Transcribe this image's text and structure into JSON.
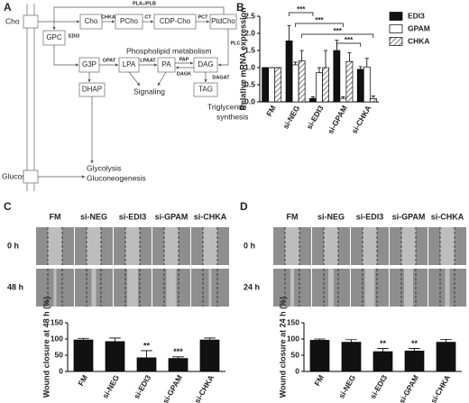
{
  "figure": {
    "panel_labels": [
      "A",
      "B",
      "C",
      "D"
    ]
  },
  "diagram": {
    "nodes": [
      "Cho",
      "Cho",
      "PCho",
      "CDP-Cho",
      "PtdCho",
      "GPC",
      "G3P",
      "LPA",
      "PA",
      "DAG",
      "DHAP",
      "TAG",
      "Glucose"
    ],
    "enzymes": [
      "PLA₂/PLB",
      "CHKA",
      "CT",
      "PCT",
      "EDI3",
      "PLC",
      "GPAT",
      "LPAAT",
      "PAP",
      "DAGK",
      "DAGAT"
    ],
    "labels": [
      "Phospholipid metabolism",
      "Signaling",
      "Triglyceride",
      "synthesis",
      "Glycolysis",
      "Gluconeogenesis"
    ]
  },
  "chart_data": [
    {
      "type": "bar",
      "y_label": "Relative mRNA expression",
      "categories": [
        "FM",
        "si-NEG",
        "si-EDI3",
        "si-GPAM",
        "si-CHKA"
      ],
      "series": [
        {
          "name": "EDI3",
          "color": "#111111",
          "values": [
            1.0,
            1.78,
            0.1,
            1.5,
            0.95
          ],
          "errors": [
            0,
            0.45,
            0.05,
            0.3,
            0.08
          ]
        },
        {
          "name": "GPAM",
          "color": "#ffffff",
          "values": [
            1.0,
            1.08,
            0.85,
            0.1,
            1.02
          ],
          "errors": [
            0,
            0.08,
            0.15,
            0.05,
            0.25
          ]
        },
        {
          "name": "CHKA",
          "color": "#ffffff",
          "pattern": "hatch",
          "values": [
            1.0,
            1.2,
            1.0,
            1.18,
            0.1
          ],
          "errors": [
            0,
            0.3,
            0.5,
            0.25,
            0.07
          ]
        }
      ],
      "ylim": [
        0,
        2.5
      ],
      "yticks": [
        {
          "value": 0,
          "label": "0.0"
        },
        0.5,
        {
          "value": 1,
          "label": "1.0"
        },
        1.5,
        {
          "value": 2,
          "label": "2.0"
        },
        2.5
      ],
      "annotations": [
        "***",
        "***",
        "***",
        "***"
      ],
      "legend": "upper right"
    },
    {
      "type": "bar",
      "y_label": "Wound closure at 48 h (%)",
      "categories": [
        "FM",
        "si-NEG",
        "si-EDI3",
        "si-GPAM",
        "si-CHKA"
      ],
      "values": [
        97,
        92,
        42,
        40,
        97
      ],
      "errors": [
        5,
        11,
        22,
        5,
        6
      ],
      "color": "#111111",
      "ylim": [
        0,
        150
      ],
      "yticks": [
        0,
        50,
        100,
        150
      ],
      "annotations": [
        "**",
        "***"
      ]
    },
    {
      "type": "bar",
      "y_label": "Wound closure at 24 h (%)",
      "categories": [
        "FM",
        "si-NEG",
        "si-EDI3",
        "si-GPAM",
        "si-CHKA"
      ],
      "values": [
        96,
        90,
        61,
        63,
        90
      ],
      "errors": [
        4,
        8,
        10,
        8,
        9
      ],
      "color": "#111111",
      "ylim": [
        0,
        150
      ],
      "yticks": [
        0,
        50,
        100,
        150
      ],
      "annotations": [
        "**",
        "**"
      ]
    }
  ],
  "images": [
    {
      "columns": [
        "FM",
        "si-NEG",
        "si-EDI3",
        "si-GPAM",
        "si-CHKA"
      ],
      "rows": [
        "0 h",
        "48 h"
      ]
    },
    {
      "columns": [
        "FM",
        "si-NEG",
        "si-EDI3",
        "si-GPAM",
        "si-CHKA"
      ],
      "rows": [
        "0 h",
        "24 h"
      ]
    }
  ]
}
